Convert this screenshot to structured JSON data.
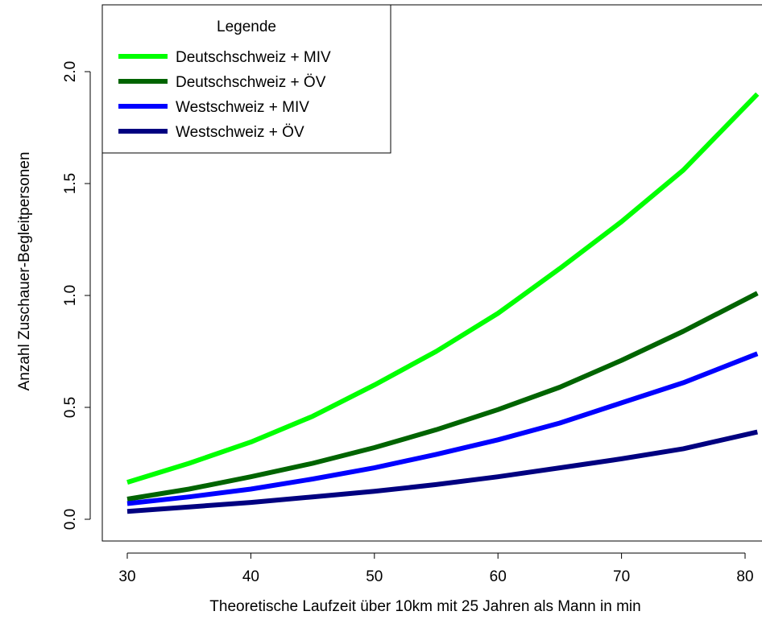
{
  "chart_data": {
    "type": "line",
    "title": "",
    "xlabel": "Theoretische Laufzeit über 10km mit 25 Jahren als Mann in min",
    "ylabel": "Anzahl Zuschauer-Begleitpersonen",
    "xlim": [
      28,
      81
    ],
    "ylim": [
      -0.1,
      2.3
    ],
    "x_ticks": [
      "30",
      "40",
      "50",
      "60",
      "70",
      "80"
    ],
    "y_ticks": [
      "0.0",
      "0.5",
      "1.0",
      "1.5",
      "2.0"
    ],
    "x_tick_values": [
      30,
      40,
      50,
      60,
      70,
      80
    ],
    "y_tick_values": [
      0.0,
      0.5,
      1.0,
      1.5,
      2.0
    ],
    "grid": false,
    "legend": {
      "title": "Legende",
      "position": "top-left"
    },
    "x": [
      30,
      35,
      40,
      45,
      50,
      55,
      60,
      65,
      70,
      75,
      81
    ],
    "series": [
      {
        "name": "Deutschschweiz + MIV",
        "color": "#00ff00",
        "values": [
          0.165,
          0.25,
          0.345,
          0.46,
          0.6,
          0.75,
          0.92,
          1.12,
          1.33,
          1.56,
          1.9
        ]
      },
      {
        "name": "Deutschschweiz + ÖV",
        "color": "#006400",
        "values": [
          0.09,
          0.135,
          0.19,
          0.25,
          0.32,
          0.4,
          0.49,
          0.59,
          0.71,
          0.84,
          1.01
        ]
      },
      {
        "name": "Westschweiz + MIV",
        "color": "#0000ff",
        "values": [
          0.07,
          0.1,
          0.135,
          0.18,
          0.23,
          0.29,
          0.355,
          0.43,
          0.52,
          0.61,
          0.74
        ]
      },
      {
        "name": "Westschweiz + ÖV",
        "color": "#000080",
        "values": [
          0.035,
          0.055,
          0.075,
          0.1,
          0.125,
          0.155,
          0.19,
          0.23,
          0.27,
          0.315,
          0.39
        ]
      }
    ]
  }
}
